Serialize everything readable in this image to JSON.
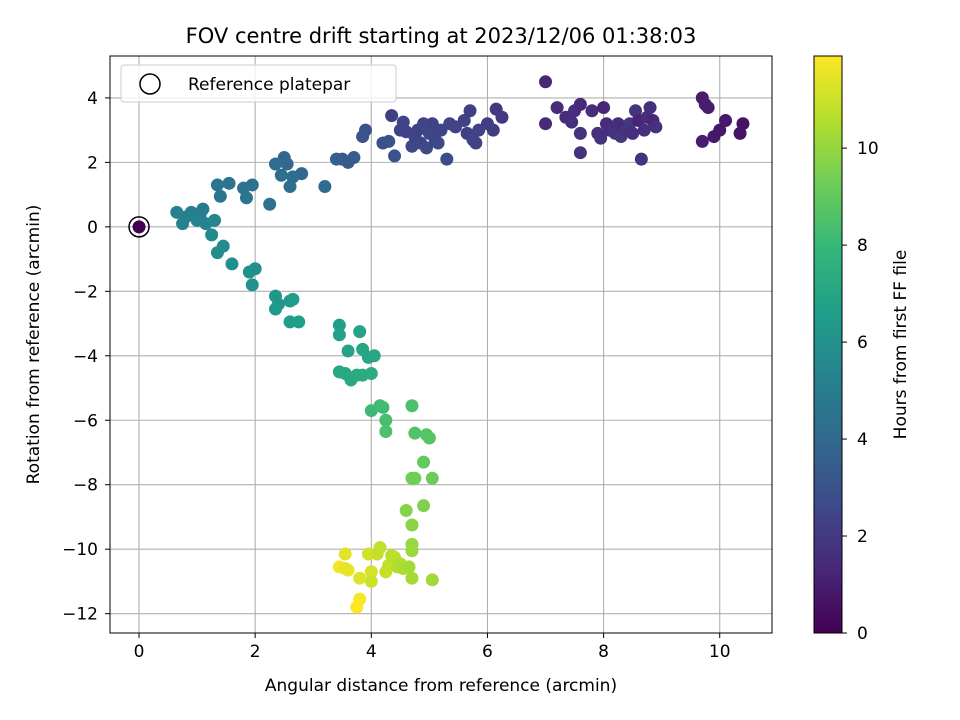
{
  "chart_data": {
    "type": "scatter",
    "title": "FOV centre drift starting at 2023/12/06 01:38:03",
    "xlabel": "Angular distance from reference (arcmin)",
    "ylabel": "Rotation from reference (arcmin)",
    "xlim": [
      -0.5,
      10.9
    ],
    "ylim": [
      -12.6,
      5.3
    ],
    "xticks": [
      0,
      2,
      4,
      6,
      8,
      10
    ],
    "yticks": [
      -12,
      -10,
      -8,
      -6,
      -4,
      -2,
      0,
      2,
      4
    ],
    "grid": true,
    "legend": {
      "position": "top-left",
      "entries": [
        "Reference platepar"
      ]
    },
    "colorbar": {
      "label": "Hours from first FF file",
      "range": [
        0,
        11.9
      ],
      "ticks": [
        0,
        2,
        4,
        6,
        8,
        10
      ],
      "colormap": "viridis"
    },
    "reference_point": {
      "x": 0,
      "y": 0,
      "hours": 0
    },
    "points": [
      [
        0.0,
        0.0,
        0.0
      ],
      [
        7.0,
        4.5,
        1.3
      ],
      [
        7.0,
        3.2,
        1.4
      ],
      [
        7.2,
        3.7,
        1.5
      ],
      [
        7.35,
        3.4,
        1.5
      ],
      [
        7.45,
        3.25,
        1.6
      ],
      [
        7.5,
        3.6,
        1.6
      ],
      [
        7.6,
        3.8,
        1.4
      ],
      [
        7.6,
        2.9,
        1.7
      ],
      [
        7.6,
        2.3,
        1.7
      ],
      [
        7.8,
        3.6,
        1.5
      ],
      [
        7.9,
        2.9,
        1.6
      ],
      [
        7.95,
        2.75,
        1.7
      ],
      [
        8.0,
        3.7,
        1.3
      ],
      [
        8.05,
        3.2,
        1.5
      ],
      [
        8.1,
        3.0,
        1.6
      ],
      [
        8.2,
        2.9,
        1.8
      ],
      [
        8.25,
        3.2,
        1.5
      ],
      [
        8.3,
        2.8,
        1.9
      ],
      [
        8.35,
        3.1,
        1.4
      ],
      [
        8.4,
        3.0,
        1.7
      ],
      [
        8.45,
        3.2,
        1.9
      ],
      [
        8.5,
        2.9,
        1.6
      ],
      [
        8.55,
        3.6,
        1.8
      ],
      [
        8.6,
        3.3,
        1.2
      ],
      [
        8.65,
        2.1,
        1.8
      ],
      [
        8.7,
        3.0,
        1.5
      ],
      [
        8.75,
        3.4,
        1.5
      ],
      [
        8.8,
        3.7,
        1.6
      ],
      [
        8.85,
        3.3,
        1.3
      ],
      [
        8.9,
        3.1,
        1.7
      ],
      [
        9.7,
        4.0,
        0.9
      ],
      [
        9.75,
        3.8,
        1.0
      ],
      [
        9.8,
        3.7,
        1.0
      ],
      [
        9.7,
        2.65,
        1.0
      ],
      [
        9.9,
        2.8,
        0.8
      ],
      [
        10.0,
        3.0,
        0.7
      ],
      [
        10.1,
        3.3,
        0.8
      ],
      [
        10.35,
        2.9,
        0.6
      ],
      [
        10.4,
        3.2,
        0.6
      ],
      [
        4.35,
        3.45,
        2.2
      ],
      [
        4.5,
        3.0,
        2.3
      ],
      [
        4.55,
        3.25,
        2.4
      ],
      [
        4.6,
        2.95,
        2.4
      ],
      [
        4.7,
        2.5,
        2.6
      ],
      [
        4.75,
        2.8,
        2.4
      ],
      [
        4.8,
        3.0,
        2.3
      ],
      [
        4.85,
        2.6,
        2.5
      ],
      [
        4.9,
        3.2,
        2.5
      ],
      [
        4.95,
        2.45,
        2.6
      ],
      [
        5.0,
        2.9,
        2.6
      ],
      [
        5.05,
        3.2,
        2.3
      ],
      [
        5.1,
        2.7,
        2.4
      ],
      [
        5.15,
        2.6,
        2.6
      ],
      [
        5.2,
        3.0,
        2.4
      ],
      [
        5.3,
        2.1,
        2.8
      ],
      [
        5.35,
        3.2,
        2.5
      ],
      [
        5.45,
        3.1,
        2.4
      ],
      [
        5.6,
        3.3,
        2.3
      ],
      [
        5.65,
        2.9,
        2.2
      ],
      [
        5.7,
        3.6,
        2.2
      ],
      [
        5.75,
        2.7,
        2.5
      ],
      [
        5.8,
        2.6,
        2.4
      ],
      [
        5.85,
        3.0,
        2.3
      ],
      [
        6.0,
        3.2,
        2.2
      ],
      [
        6.1,
        3.0,
        2.1
      ],
      [
        6.15,
        3.65,
        2.0
      ],
      [
        6.25,
        3.4,
        2.0
      ],
      [
        4.2,
        2.6,
        2.9
      ],
      [
        4.3,
        2.65,
        3.0
      ],
      [
        4.4,
        2.2,
        3.1
      ],
      [
        3.85,
        2.8,
        3.1
      ],
      [
        3.9,
        3.0,
        3.1
      ],
      [
        3.7,
        2.15,
        3.5
      ],
      [
        3.5,
        2.1,
        3.3
      ],
      [
        3.6,
        2.0,
        3.4
      ],
      [
        3.4,
        2.1,
        3.6
      ],
      [
        3.2,
        1.25,
        4.1
      ],
      [
        2.8,
        1.65,
        4.0
      ],
      [
        2.6,
        1.25,
        4.3
      ],
      [
        2.65,
        1.55,
        4.2
      ],
      [
        2.5,
        2.15,
        3.9
      ],
      [
        2.55,
        1.95,
        4.0
      ],
      [
        2.35,
        1.95,
        4.2
      ],
      [
        2.45,
        1.6,
        4.3
      ],
      [
        2.25,
        0.7,
        4.5
      ],
      [
        1.95,
        1.3,
        4.4
      ],
      [
        1.8,
        1.2,
        4.5
      ],
      [
        1.85,
        0.9,
        4.6
      ],
      [
        1.55,
        1.35,
        4.6
      ],
      [
        1.35,
        1.3,
        4.7
      ],
      [
        1.4,
        0.95,
        4.7
      ],
      [
        1.1,
        0.55,
        4.9
      ],
      [
        1.05,
        0.35,
        5.0
      ],
      [
        0.9,
        0.45,
        5.1
      ],
      [
        0.8,
        0.3,
        5.2
      ],
      [
        0.65,
        0.45,
        5.2
      ],
      [
        0.75,
        0.1,
        5.3
      ],
      [
        1.0,
        0.2,
        5.3
      ],
      [
        1.15,
        0.1,
        5.4
      ],
      [
        1.3,
        0.2,
        5.5
      ],
      [
        1.25,
        -0.25,
        5.6
      ],
      [
        1.35,
        -0.8,
        5.8
      ],
      [
        1.45,
        -0.6,
        5.7
      ],
      [
        1.6,
        -1.15,
        5.9
      ],
      [
        1.9,
        -1.4,
        6.0
      ],
      [
        2.0,
        -1.3,
        6.0
      ],
      [
        1.95,
        -1.8,
        6.1
      ],
      [
        2.35,
        -2.15,
        6.3
      ],
      [
        2.4,
        -2.4,
        6.3
      ],
      [
        2.35,
        -2.55,
        6.4
      ],
      [
        2.6,
        -2.3,
        6.4
      ],
      [
        2.65,
        -2.25,
        6.5
      ],
      [
        2.6,
        -2.95,
        6.6
      ],
      [
        2.75,
        -2.95,
        6.7
      ],
      [
        3.45,
        -3.05,
        6.7
      ],
      [
        3.45,
        -3.35,
        6.8
      ],
      [
        3.6,
        -3.85,
        6.9
      ],
      [
        3.8,
        -3.25,
        6.9
      ],
      [
        3.85,
        -3.8,
        7.0
      ],
      [
        3.95,
        -4.05,
        7.0
      ],
      [
        4.05,
        -4.0,
        7.1
      ],
      [
        3.45,
        -4.5,
        7.1
      ],
      [
        3.55,
        -4.55,
        7.2
      ],
      [
        3.65,
        -4.75,
        7.2
      ],
      [
        3.75,
        -4.6,
        7.3
      ],
      [
        3.85,
        -4.6,
        7.3
      ],
      [
        4.0,
        -4.55,
        7.4
      ],
      [
        4.0,
        -5.7,
        8.1
      ],
      [
        4.15,
        -5.55,
        8.2
      ],
      [
        4.2,
        -5.6,
        8.2
      ],
      [
        4.25,
        -6.0,
        8.4
      ],
      [
        4.25,
        -6.35,
        8.5
      ],
      [
        4.7,
        -5.55,
        8.5
      ],
      [
        4.75,
        -6.4,
        8.6
      ],
      [
        4.95,
        -6.45,
        8.7
      ],
      [
        5.0,
        -6.55,
        8.7
      ],
      [
        4.9,
        -7.3,
        9.0
      ],
      [
        4.7,
        -7.8,
        9.3
      ],
      [
        4.75,
        -7.8,
        9.3
      ],
      [
        5.05,
        -7.8,
        9.2
      ],
      [
        4.9,
        -8.65,
        9.6
      ],
      [
        4.6,
        -8.8,
        9.7
      ],
      [
        4.7,
        -9.25,
        9.8
      ],
      [
        4.7,
        -9.85,
        10.0
      ],
      [
        4.7,
        -10.05,
        10.1
      ],
      [
        3.45,
        -10.55,
        11.7
      ],
      [
        3.55,
        -10.15,
        11.4
      ],
      [
        3.6,
        -10.65,
        11.6
      ],
      [
        3.55,
        -10.6,
        11.5
      ],
      [
        3.8,
        -10.9,
        11.3
      ],
      [
        3.95,
        -10.15,
        11.1
      ],
      [
        4.0,
        -10.7,
        11.2
      ],
      [
        4.0,
        -11.0,
        11.0
      ],
      [
        4.1,
        -10.15,
        10.9
      ],
      [
        4.15,
        -9.95,
        10.8
      ],
      [
        4.25,
        -10.7,
        10.9
      ],
      [
        4.3,
        -10.5,
        10.8
      ],
      [
        4.35,
        -10.2,
        10.7
      ],
      [
        4.4,
        -10.25,
        10.7
      ],
      [
        4.45,
        -10.55,
        10.6
      ],
      [
        4.5,
        -10.45,
        10.5
      ],
      [
        4.55,
        -10.6,
        10.4
      ],
      [
        4.65,
        -10.55,
        10.3
      ],
      [
        4.7,
        -10.9,
        10.3
      ],
      [
        5.05,
        -10.95,
        10.2
      ],
      [
        3.8,
        -11.55,
        11.8
      ],
      [
        3.75,
        -11.8,
        11.9
      ]
    ]
  }
}
